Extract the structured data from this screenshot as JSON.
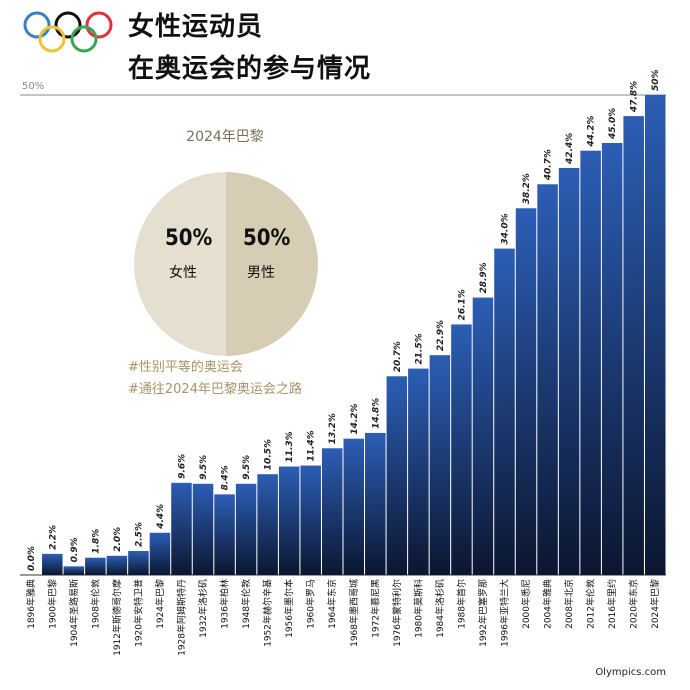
{
  "header": {
    "title_line1": "女性运动员",
    "title_line2": "在奥运会的参与情况"
  },
  "reference_label": "50%",
  "pie": {
    "title": "2024年巴黎",
    "female_pct": "50%",
    "female_label": "女性",
    "male_pct": "50%",
    "male_label": "男性",
    "female_color": "#e4dfcf",
    "male_color": "#d6cdb4"
  },
  "hashtags": [
    "#性别平等的奥运会",
    "#通往2024年巴黎奥运会之路"
  ],
  "source": "Olympics.com",
  "colors": {
    "bar_dark": "#0b1630",
    "bar_light": "#2c5eb5",
    "pie_text": "#7a6f55",
    "hashtag": "#a89467",
    "ring_blue": "#3a7fc1",
    "ring_yellow": "#f2c12e",
    "ring_black": "#111111",
    "ring_green": "#3aa655",
    "ring_red": "#e0313c"
  },
  "chart_data": {
    "type": "bar",
    "categories": [
      "1896年雅典",
      "1900年巴黎",
      "1904年圣路易斯",
      "1908年伦敦",
      "1912年斯德哥尔摩",
      "1920年安特卫普",
      "1924年巴黎",
      "1928年阿姆斯特丹",
      "1932年洛杉矶",
      "1936年柏林",
      "1948年伦敦",
      "1952年赫尔辛基",
      "1956年墨尔本",
      "1960年罗马",
      "1964年东京",
      "1968年墨西哥城",
      "1972年慕尼黑",
      "1976年蒙特利尔",
      "1980年莫斯科",
      "1984年洛杉矶",
      "1988年首尔",
      "1992年巴塞罗那",
      "1996年亚特兰大",
      "2000年悉尼",
      "2004年雅典",
      "2008年北京",
      "2012年伦敦",
      "2016年里约",
      "2020年东京",
      "2024年巴黎"
    ],
    "values": [
      0.0,
      2.2,
      0.9,
      1.8,
      2.0,
      2.5,
      4.4,
      9.6,
      9.5,
      8.4,
      9.5,
      10.5,
      11.3,
      11.4,
      13.2,
      14.2,
      14.8,
      20.7,
      21.5,
      22.9,
      26.1,
      28.9,
      34.0,
      38.2,
      40.7,
      42.4,
      44.2,
      45.0,
      47.8,
      50
    ],
    "value_labels": [
      "0.0%",
      "2.2%",
      "0.9%",
      "1.8%",
      "2.0%",
      "2.5%",
      "4.4%",
      "9.6%",
      "9.5%",
      "8.4%",
      "9.5%",
      "10.5%",
      "11.3%",
      "11.4%",
      "13.2%",
      "14.2%",
      "14.8%",
      "20.7%",
      "21.5%",
      "22.9%",
      "26.1%",
      "28.9%",
      "34.0%",
      "38.2%",
      "40.7%",
      "42.4%",
      "44.2%",
      "45.0%",
      "47.8%",
      "50%"
    ],
    "ylim": [
      0,
      50
    ],
    "grid": false
  }
}
